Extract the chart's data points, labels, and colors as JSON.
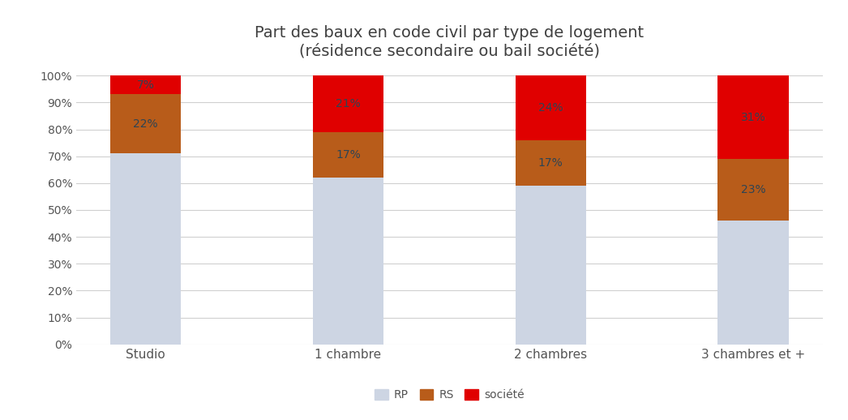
{
  "title_line1": "Part des baux en code civil par type de logement",
  "title_line2": "(résidence secondaire ou bail société)",
  "categories": [
    "Studio",
    "1 chambre",
    "2 chambres",
    "3 chambres et +"
  ],
  "rp_values": [
    71,
    62,
    59,
    46
  ],
  "rs_values": [
    22,
    17,
    17,
    23
  ],
  "societe_values": [
    7,
    21,
    24,
    31
  ],
  "color_rp": "#cdd5e3",
  "color_rs": "#b85c1a",
  "color_societe": "#e00000",
  "bar_width": 0.35,
  "ylim": [
    0,
    100
  ],
  "yticks": [
    0,
    10,
    20,
    30,
    40,
    50,
    60,
    70,
    80,
    90,
    100
  ],
  "ytick_labels": [
    "0%",
    "10%",
    "20%",
    "30%",
    "40%",
    "50%",
    "60%",
    "70%",
    "80%",
    "90%",
    "100%"
  ],
  "legend_labels": [
    "RP",
    "RS",
    "société"
  ],
  "background_color": "#ffffff",
  "grid_color": "#d0d0d0",
  "label_color": "#2e4453",
  "label_fontsize": 10,
  "title_fontsize": 14,
  "tick_fontsize": 10,
  "title_color": "#404040"
}
